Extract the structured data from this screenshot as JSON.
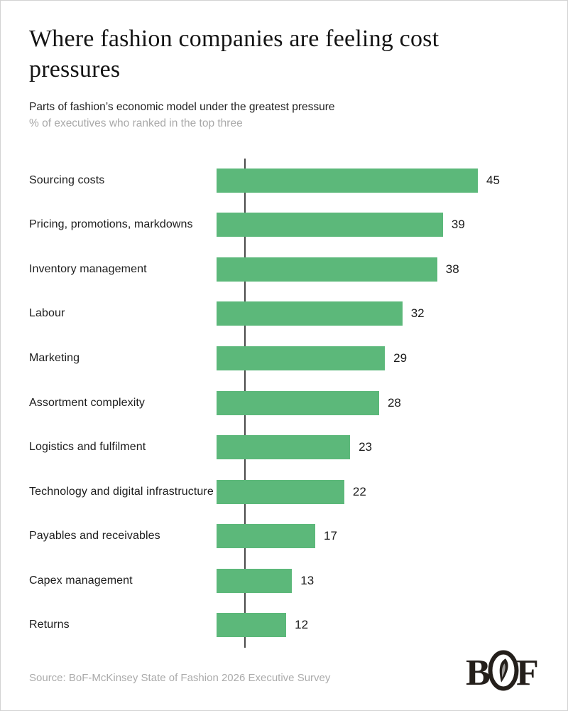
{
  "header": {
    "title": "Where fashion companies are feeling cost pressures",
    "subtitle": "Parts of fashion’s economic model under the greatest pressure",
    "note": "% of executives who ranked in the top three"
  },
  "chart_data": {
    "type": "bar",
    "orientation": "horizontal",
    "title": "Where fashion companies are feeling cost pressures",
    "xlabel": "",
    "ylabel": "",
    "categories": [
      "Sourcing costs",
      "Pricing, promotions, markdowns",
      "Inventory management",
      "Labour",
      "Marketing",
      "Assortment complexity",
      "Logistics and fulfilment",
      "Technology and digital infrastructure",
      "Payables and receivables",
      "Capex management",
      "Returns"
    ],
    "values": [
      45,
      39,
      38,
      32,
      29,
      28,
      23,
      22,
      17,
      13,
      12
    ],
    "xlim": [
      0,
      45
    ],
    "grid": false,
    "value_labels": "end-of-bar",
    "bar_color": "#5cb87a",
    "axis_color": "#4a4a4a",
    "text_color": "#1a1a1a",
    "muted_text_color": "#ababab"
  },
  "footer": {
    "source": "Source: BoF-McKinsey State of Fashion 2026 Executive Survey",
    "logo": "BoF"
  }
}
